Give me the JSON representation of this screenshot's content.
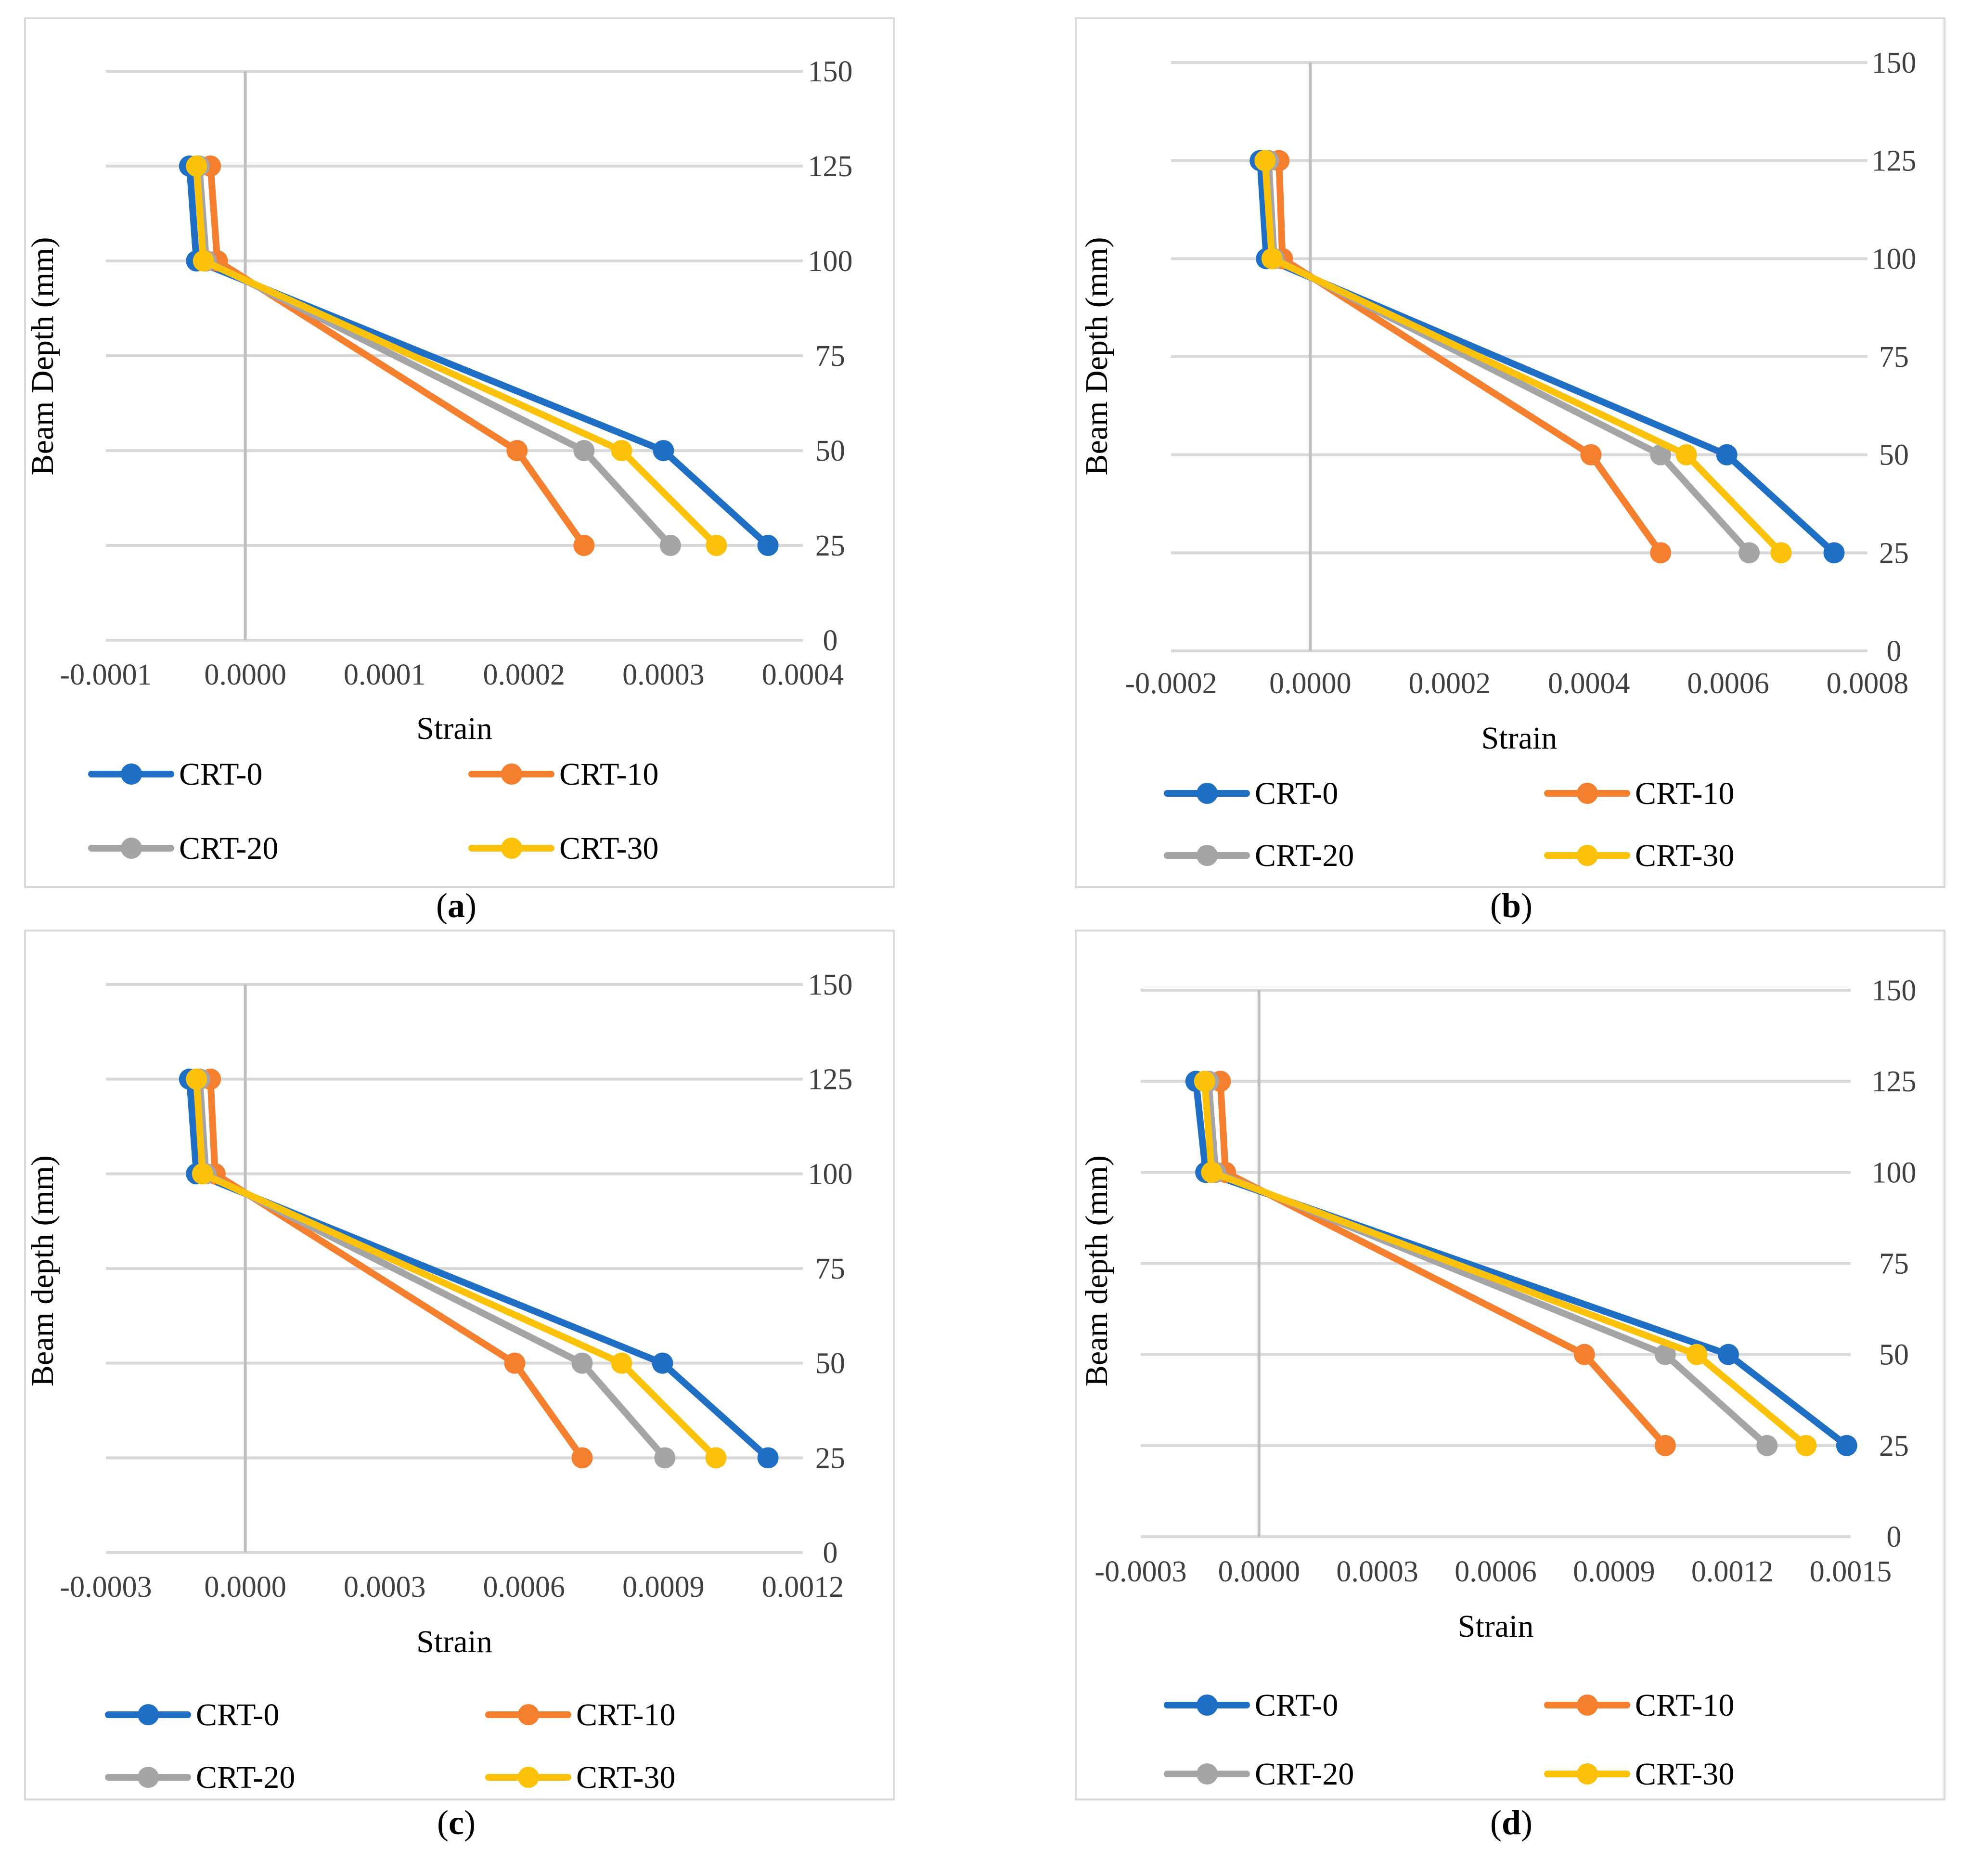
{
  "series_styles": [
    {
      "name": "CRT-0",
      "color": "#1f6fc5"
    },
    {
      "name": "CRT-10",
      "color": "#f47f2e"
    },
    {
      "name": "CRT-20",
      "color": "#a5a5a5"
    },
    {
      "name": "CRT-30",
      "color": "#fcc20a"
    }
  ],
  "chart_data": [
    {
      "type": "line",
      "panel": "a",
      "caption": [
        "(",
        "a",
        ")"
      ],
      "xlabel": "Strain",
      "ylabel": "Beam Depth (mm)",
      "xlim": [
        -0.0001,
        0.0004
      ],
      "xticks": [
        "-0.0001",
        "0.0000",
        "0.0001",
        "0.0002",
        "0.0003",
        "0.0004"
      ],
      "ylim": [
        0,
        150
      ],
      "yticks": [
        "0",
        "25",
        "50",
        "75",
        "100",
        "125",
        "150"
      ],
      "grid": "horizontal",
      "legend": "bottom",
      "series": [
        {
          "name": "CRT-0",
          "points": [
            [
              -4e-05,
              125
            ],
            [
              -3.5e-05,
              100
            ],
            [
              0.0003,
              50
            ],
            [
              0.000375,
              25
            ]
          ]
        },
        {
          "name": "CRT-10",
          "points": [
            [
              -2.5e-05,
              125
            ],
            [
              -2e-05,
              100
            ],
            [
              0.000195,
              50
            ],
            [
              0.000243,
              25
            ]
          ]
        },
        {
          "name": "CRT-20",
          "points": [
            [
              -3.3e-05,
              125
            ],
            [
              -2.8e-05,
              100
            ],
            [
              0.000243,
              50
            ],
            [
              0.000305,
              25
            ]
          ]
        },
        {
          "name": "CRT-30",
          "points": [
            [
              -3.5e-05,
              125
            ],
            [
              -3e-05,
              100
            ],
            [
              0.00027,
              50
            ],
            [
              0.000338,
              25
            ]
          ]
        }
      ]
    },
    {
      "type": "line",
      "panel": "b",
      "caption": [
        "(",
        "b",
        ")"
      ],
      "xlabel": "Strain",
      "ylabel": "Beam Depth (mm)",
      "xlim": [
        -0.0002,
        0.0008
      ],
      "xticks": [
        "-0.0002",
        "0.0000",
        "0.0002",
        "0.0004",
        "0.0006",
        "0.0008"
      ],
      "ylim": [
        0,
        150
      ],
      "yticks": [
        "0",
        "25",
        "50",
        "75",
        "100",
        "125",
        "150"
      ],
      "grid": "horizontal",
      "legend": "bottom",
      "series": [
        {
          "name": "CRT-0",
          "points": [
            [
              -7.2e-05,
              125
            ],
            [
              -6.3e-05,
              100
            ],
            [
              0.000598,
              50
            ],
            [
              0.000752,
              25
            ]
          ]
        },
        {
          "name": "CRT-10",
          "points": [
            [
              -4.5e-05,
              125
            ],
            [
              -4e-05,
              100
            ],
            [
              0.000403,
              50
            ],
            [
              0.000503,
              25
            ]
          ]
        },
        {
          "name": "CRT-20",
          "points": [
            [
              -6e-05,
              125
            ],
            [
              -5.2e-05,
              100
            ],
            [
              0.000503,
              50
            ],
            [
              0.00063,
              25
            ]
          ]
        },
        {
          "name": "CRT-30",
          "points": [
            [
              -6.5e-05,
              125
            ],
            [
              -5.5e-05,
              100
            ],
            [
              0.00054,
              50
            ],
            [
              0.000676,
              25
            ]
          ]
        }
      ]
    },
    {
      "type": "line",
      "panel": "c",
      "caption": [
        "(",
        "c",
        ")"
      ],
      "xlabel": "Strain",
      "ylabel": "Beam depth (mm)",
      "xlim": [
        -0.0003,
        0.0012
      ],
      "xticks": [
        "-0.0003",
        "0.0000",
        "0.0003",
        "0.0006",
        "0.0009",
        "0.0012"
      ],
      "ylim": [
        0,
        150
      ],
      "yticks": [
        "0",
        "25",
        "50",
        "75",
        "100",
        "125",
        "150"
      ],
      "grid": "horizontal",
      "legend": "bottom",
      "series": [
        {
          "name": "CRT-0",
          "points": [
            [
              -0.00012,
              125
            ],
            [
              -0.000105,
              100
            ],
            [
              0.000898,
              50
            ],
            [
              0.001125,
              25
            ]
          ]
        },
        {
          "name": "CRT-10",
          "points": [
            [
              -7.5e-05,
              125
            ],
            [
              -6.5e-05,
              100
            ],
            [
              0.00058,
              50
            ],
            [
              0.000725,
              25
            ]
          ]
        },
        {
          "name": "CRT-20",
          "points": [
            [
              -9.8e-05,
              125
            ],
            [
              -8.5e-05,
              100
            ],
            [
              0.000725,
              50
            ],
            [
              0.000903,
              25
            ]
          ]
        },
        {
          "name": "CRT-30",
          "points": [
            [
              -0.000105,
              125
            ],
            [
              -9.2e-05,
              100
            ],
            [
              0.00081,
              50
            ],
            [
              0.001013,
              25
            ]
          ]
        }
      ]
    },
    {
      "type": "line",
      "panel": "d",
      "caption": [
        "(",
        "d",
        ")"
      ],
      "xlabel": "Strain",
      "ylabel": "Beam depth (mm)",
      "xlim": [
        -0.0003,
        0.0015
      ],
      "xticks": [
        "-0.0003",
        "0.0000",
        "0.0003",
        "0.0006",
        "0.0009",
        "0.0012",
        "0.0015"
      ],
      "ylim": [
        0,
        150
      ],
      "yticks": [
        "0",
        "25",
        "50",
        "75",
        "100",
        "125",
        "150"
      ],
      "grid": "horizontal",
      "legend": "bottom",
      "series": [
        {
          "name": "CRT-0",
          "points": [
            [
              -0.00016,
              125
            ],
            [
              -0.000135,
              100
            ],
            [
              0.00119,
              50
            ],
            [
              0.00149,
              25
            ]
          ]
        },
        {
          "name": "CRT-10",
          "points": [
            [
              -9.8e-05,
              125
            ],
            [
              -8.5e-05,
              100
            ],
            [
              0.000825,
              50
            ],
            [
              0.00103,
              25
            ]
          ]
        },
        {
          "name": "CRT-20",
          "points": [
            [
              -0.000128,
              125
            ],
            [
              -0.00011,
              100
            ],
            [
              0.00103,
              50
            ],
            [
              0.001288,
              25
            ]
          ]
        },
        {
          "name": "CRT-30",
          "points": [
            [
              -0.000138,
              125
            ],
            [
              -0.00012,
              100
            ],
            [
              0.00111,
              50
            ],
            [
              0.001387,
              25
            ]
          ]
        }
      ]
    }
  ]
}
